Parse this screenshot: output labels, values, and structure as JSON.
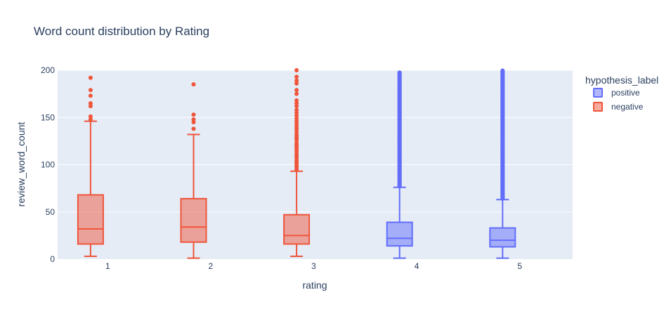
{
  "chart_data": {
    "type": "box",
    "title": "Word count distribution by Rating",
    "xlabel": "rating",
    "ylabel": "review_word_count",
    "ylim": [
      0,
      200
    ],
    "yticks": [
      0,
      50,
      100,
      150,
      200
    ],
    "categories": [
      "1",
      "2",
      "3",
      "4",
      "5"
    ],
    "legend": {
      "title": "hypothesis_label",
      "placement": "top-right",
      "items": [
        {
          "name": "positive",
          "color": "#636efa"
        },
        {
          "name": "negative",
          "color": "#ef553b"
        }
      ]
    },
    "colors": {
      "plot_bg": "#e5ecf6",
      "grid": "#ffffff",
      "text": "#2a3f5f"
    },
    "boxes": [
      {
        "category": "1",
        "series": "negative",
        "lower_fence": 3,
        "q1": 16,
        "median": 32,
        "q3": 68,
        "upper_fence": 146,
        "outliers": [
          148,
          151,
          162,
          165,
          173,
          179,
          192
        ]
      },
      {
        "category": "2",
        "series": "negative",
        "lower_fence": 1,
        "q1": 18,
        "median": 34,
        "q3": 64,
        "upper_fence": 132,
        "outliers": [
          138,
          145,
          148,
          153,
          185
        ]
      },
      {
        "category": "3",
        "series": "negative",
        "lower_fence": 3,
        "q1": 16,
        "median": 25,
        "q3": 47,
        "upper_fence": 93,
        "outliers": [
          95,
          97,
          99,
          101,
          103,
          105,
          108,
          110,
          112,
          115,
          117,
          119,
          121,
          123,
          126,
          128,
          130,
          132,
          135,
          138,
          140,
          143,
          146,
          149,
          152,
          155,
          158,
          162,
          165,
          168,
          175,
          179,
          186,
          189,
          193,
          200
        ]
      },
      {
        "category": "4",
        "series": "positive",
        "lower_fence": 1,
        "q1": 14,
        "median": 22,
        "q3": 39,
        "upper_fence": 76,
        "outliers_range": [
          77,
          198
        ]
      },
      {
        "category": "5",
        "series": "positive",
        "lower_fence": 1,
        "q1": 13,
        "median": 20,
        "q3": 33,
        "upper_fence": 63,
        "outliers_range": [
          64,
          200
        ]
      }
    ]
  }
}
